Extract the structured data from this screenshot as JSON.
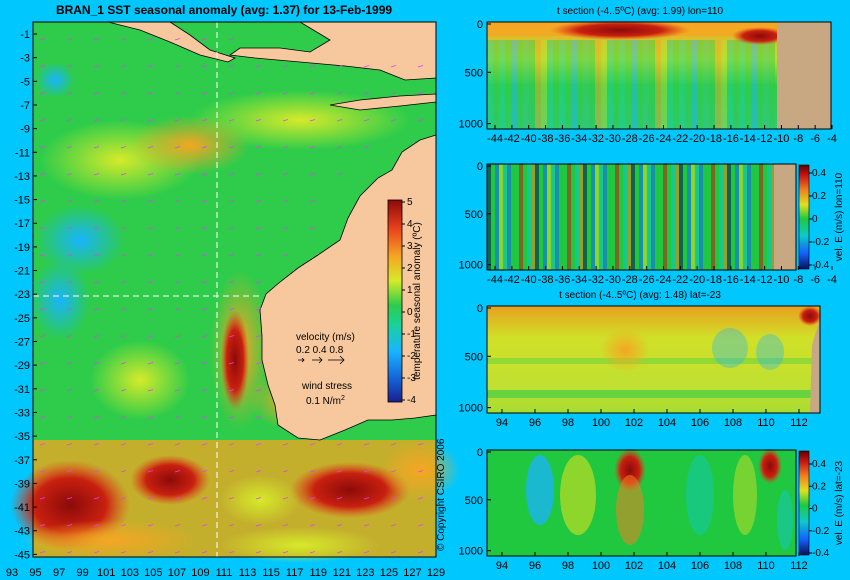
{
  "colors": {
    "background": "#00c8ff",
    "land_map": "#f7c79d",
    "land_section": "#c8a882",
    "anomaly_scale": [
      "#1a1f8c",
      "#1565d8",
      "#19b4ff",
      "#19d29a",
      "#2ecc4a",
      "#d6ea2a",
      "#f5a623",
      "#e8401c",
      "#8c0a0a"
    ],
    "velocity_scale": [
      "#08105a",
      "#1460ff",
      "#10c8c8",
      "#20c840",
      "#e0e020",
      "#f08020",
      "#c81414",
      "#600000"
    ]
  },
  "map": {
    "title": "BRAN_1 SST seasonal anomaly (avg: 1.37) for 13-Feb-1999",
    "colorbar_label": "temperature seasonal anomaly (ºC)",
    "colorbar_ticks": [
      "5",
      "4",
      "3",
      "2",
      "1",
      "0",
      "-1",
      "-2",
      "-3",
      "-4"
    ],
    "y_ticks": [
      "-1",
      "-3",
      "-5",
      "-7",
      "-9",
      "-11",
      "-13",
      "-15",
      "-17",
      "-19",
      "-21",
      "-23",
      "-25",
      "-27",
      "-29",
      "-31",
      "-33",
      "-35",
      "-37",
      "-39",
      "-41",
      "-43",
      "-45"
    ],
    "x_ticks": [
      "93",
      "95",
      "97",
      "99",
      "101",
      "103",
      "105",
      "107",
      "109",
      "111",
      "113",
      "115",
      "117",
      "119",
      "121",
      "123",
      "125",
      "127",
      "129"
    ],
    "velocity_label": "velocity (m/s)",
    "velocity_values": "0.2 0.4 0.8",
    "wind_label": "wind stress",
    "wind_value": "0.1 N/m",
    "wind_sup": "2",
    "copyright": "© Copyright CSIRO 2006"
  },
  "chart_data": [
    {
      "type": "heatmap",
      "title": "BRAN_1 SST seasonal anomaly (avg: 1.37) for 13-Feb-1999",
      "xlabel": "",
      "ylabel": "",
      "x_range": [
        93,
        130
      ],
      "y_range": [
        -45,
        0
      ],
      "colorbar": {
        "label": "temperature seasonal anomaly (ºC)",
        "range": [
          -4,
          5
        ]
      },
      "section_lines": {
        "lon": 110,
        "lat": -23
      },
      "average": 1.37
    },
    {
      "type": "heatmap",
      "title": "t section (-4..5ºC) (avg: 1.99) lon=110",
      "x_ticks": [
        "-44",
        "-42",
        "-40",
        "-38",
        "-36",
        "-34",
        "-32",
        "-30",
        "-28",
        "-26",
        "-24",
        "-22",
        "-20",
        "-18",
        "-16",
        "-14",
        "-12",
        "-10",
        "-8",
        "-6",
        "-4"
      ],
      "y_ticks": [
        "0",
        "500",
        "1000"
      ],
      "average": 1.99
    },
    {
      "type": "heatmap",
      "title": "",
      "colorbar": {
        "label": "vel. E (m/s) lon=110",
        "ticks": [
          "0.4",
          "0.2",
          "0",
          "-0.2",
          "-0.4"
        ]
      },
      "x_ticks": [
        "-44",
        "-42",
        "-40",
        "-38",
        "-36",
        "-34",
        "-32",
        "-30",
        "-28",
        "-26",
        "-24",
        "-22",
        "-20",
        "-18",
        "-16",
        "-14",
        "-12",
        "-10",
        "-8",
        "-6",
        "-4"
      ],
      "y_ticks": [
        "0",
        "500",
        "1000"
      ]
    },
    {
      "type": "heatmap",
      "title": "t section (-4..5ºC) (avg: 1.48) lat=-23",
      "x_ticks": [
        "94",
        "96",
        "98",
        "100",
        "102",
        "104",
        "106",
        "108",
        "110",
        "112"
      ],
      "y_ticks": [
        "0",
        "500",
        "1000"
      ],
      "average": 1.48
    },
    {
      "type": "heatmap",
      "title": "",
      "colorbar": {
        "label": "vel. E (m/s) lat=-23",
        "ticks": [
          "0.4",
          "0.2",
          "0",
          "-0.2",
          "-0.4"
        ]
      },
      "x_ticks": [
        "94",
        "96",
        "98",
        "100",
        "102",
        "104",
        "106",
        "108",
        "110",
        "112"
      ],
      "y_ticks": [
        "0",
        "500",
        "1000"
      ]
    }
  ]
}
